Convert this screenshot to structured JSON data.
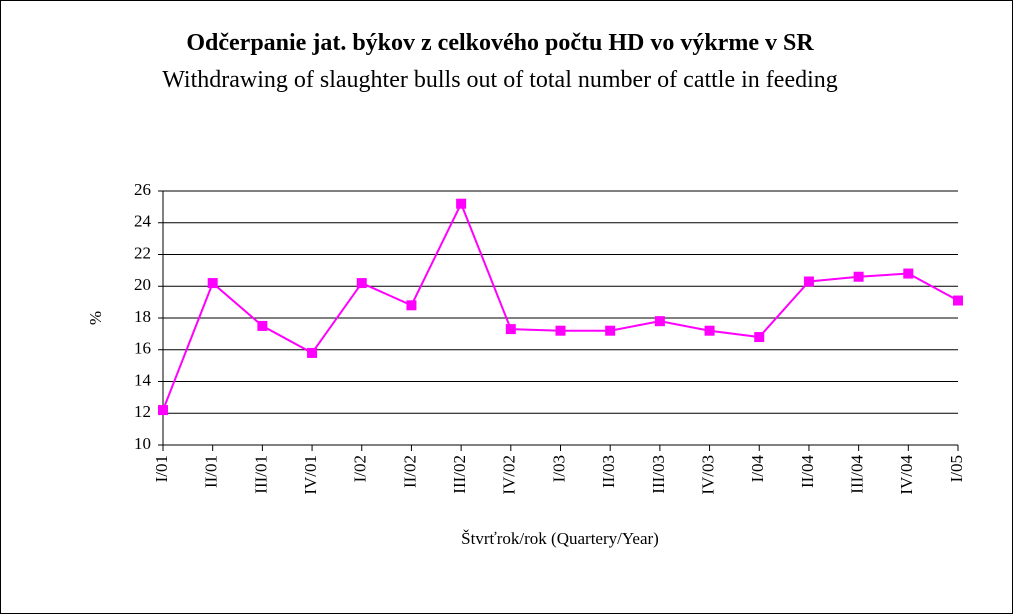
{
  "chart_data": {
    "type": "line",
    "title": "Odčerpanie jat. býkov z celkového počtu HD vo výkrme v SR",
    "subtitle": "Withdrawing of slaughter bulls out of total number of cattle in feeding",
    "y_label": "%",
    "x_label": "Štvrťrok/rok (Quartery/Year)",
    "categories": [
      "I/01",
      "II/01",
      "III/01",
      "IV/01",
      "I/02",
      "II/02",
      "III/02",
      "IV/02",
      "I/03",
      "II/03",
      "III/03",
      "IV/03",
      "I/04",
      "II/04",
      "III/04",
      "IV/04",
      "I/05"
    ],
    "series": [
      {
        "name": "Odčerpanie",
        "color": "#ff00ff",
        "values": [
          12.2,
          20.2,
          17.5,
          15.8,
          20.2,
          18.8,
          25.2,
          17.3,
          17.2,
          17.2,
          17.8,
          17.2,
          16.8,
          20.3,
          20.6,
          20.8,
          19.1
        ]
      }
    ],
    "ylim": [
      10,
      26
    ],
    "yticks": [
      10,
      12,
      14,
      16,
      18,
      20,
      22,
      24,
      26
    ],
    "grid": true
  }
}
